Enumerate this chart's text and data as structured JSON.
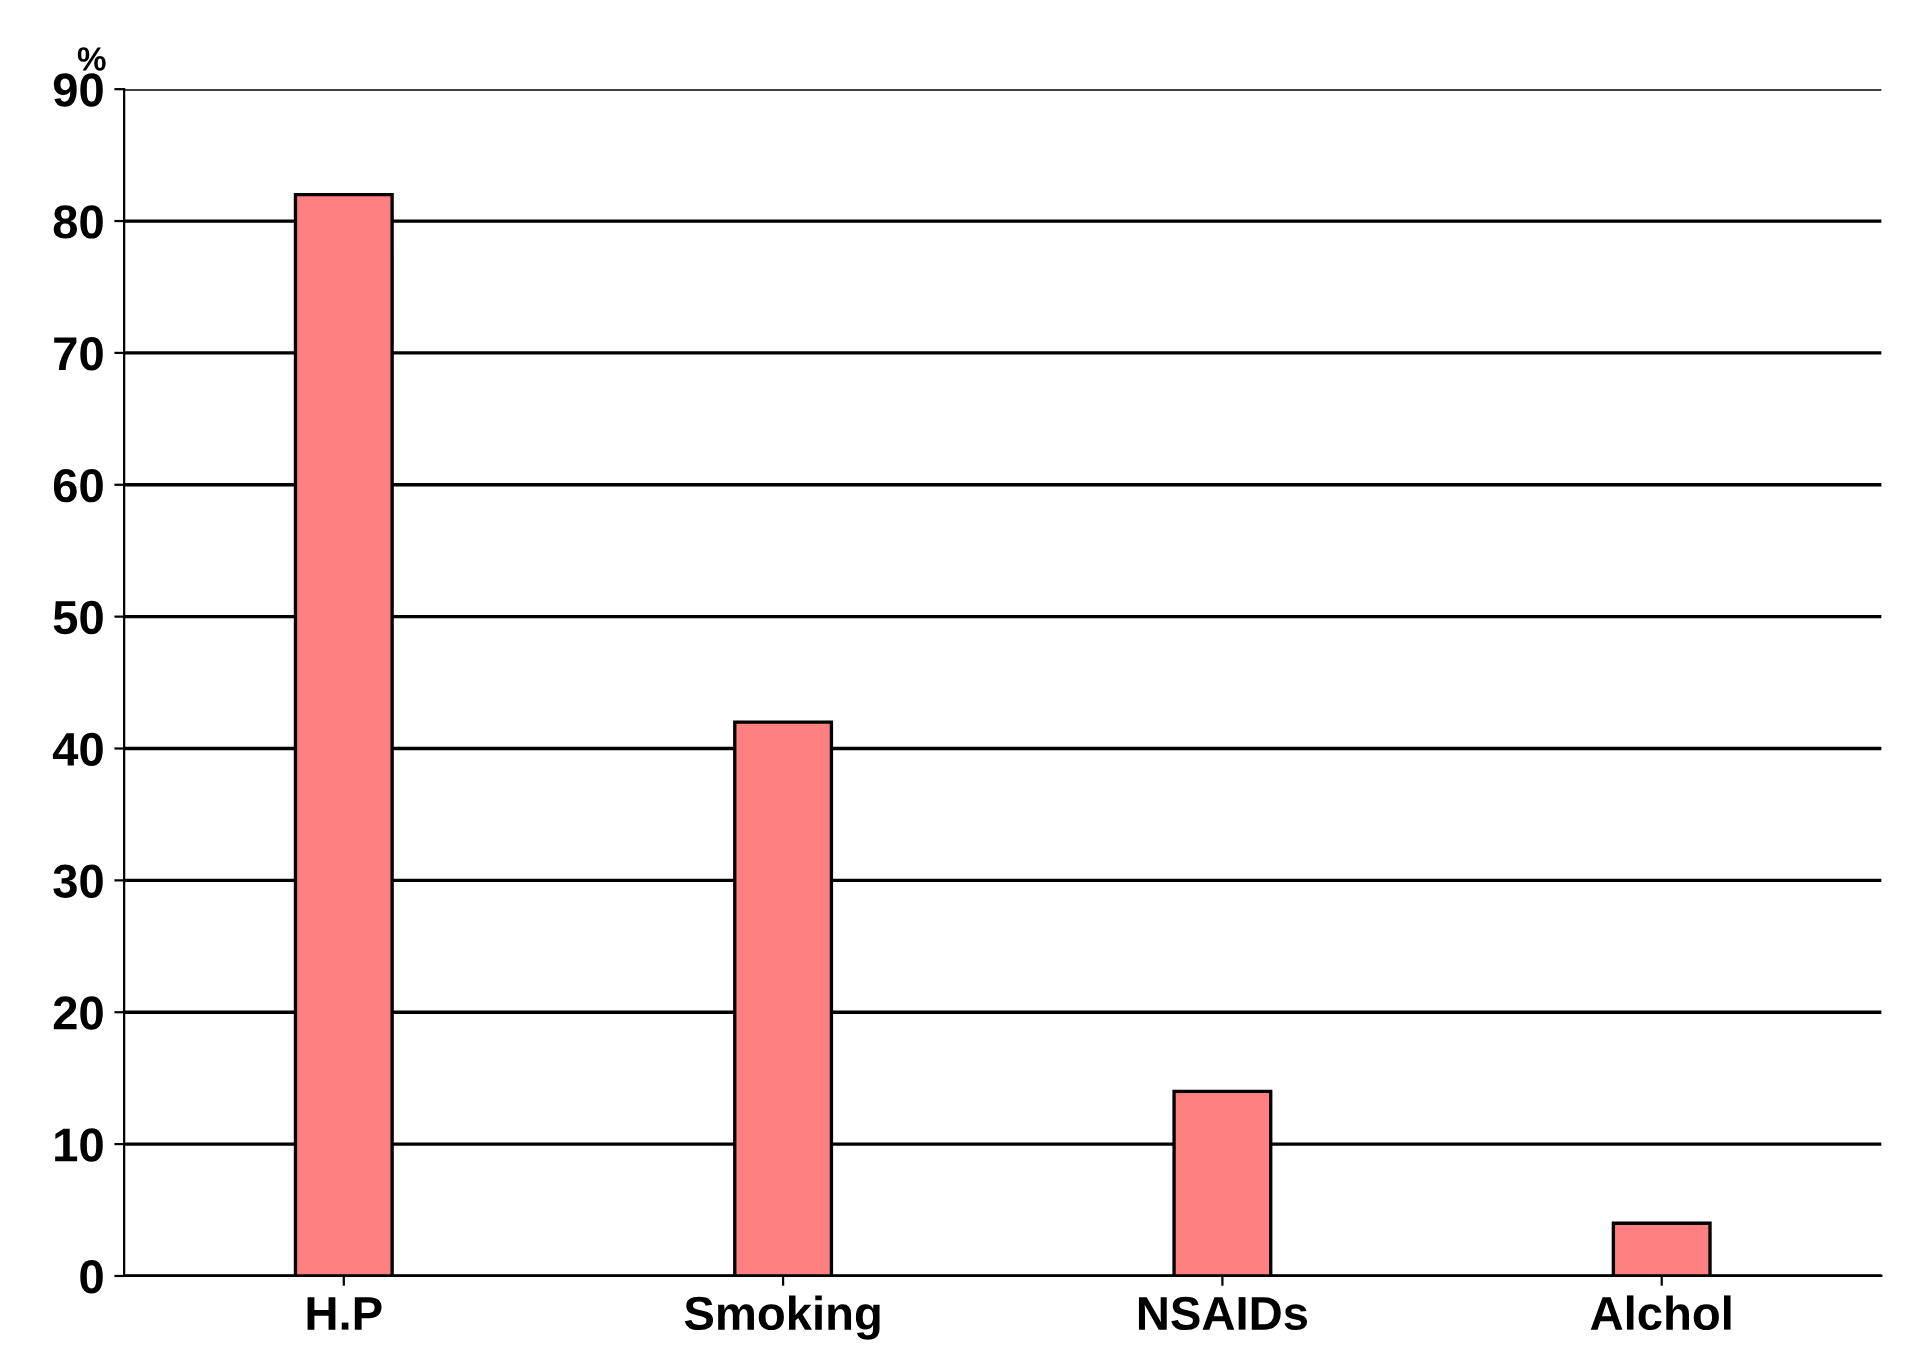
{
  "chart_data": {
    "type": "bar",
    "ylabel": "%",
    "categories": [
      "H.P",
      "Smoking",
      "NSAIDs",
      "Alchol"
    ],
    "values": [
      82,
      42,
      14,
      4
    ],
    "color": "#ff8080",
    "ylim": [
      0,
      90
    ],
    "yticks": [
      0,
      10,
      20,
      30,
      40,
      50,
      60,
      70,
      80,
      90
    ],
    "grid": "y"
  }
}
